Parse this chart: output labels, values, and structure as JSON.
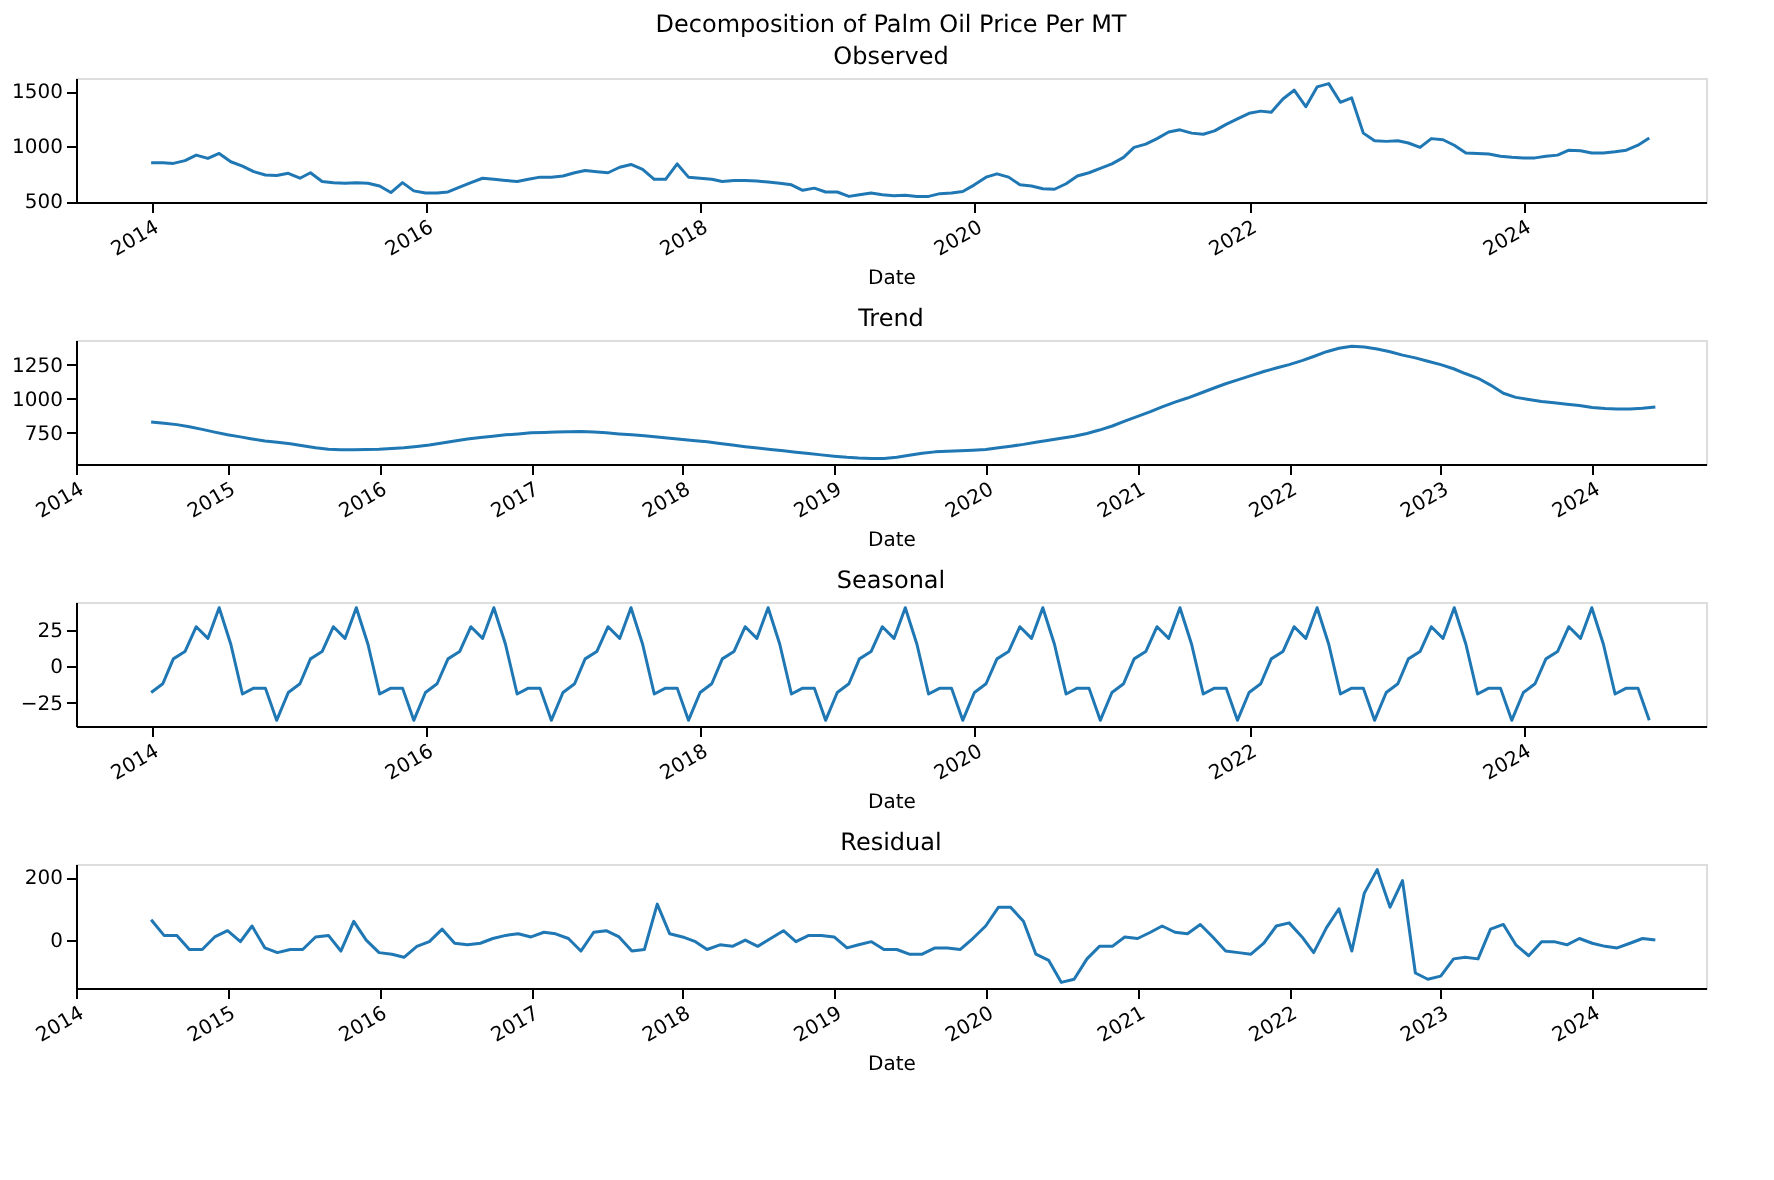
{
  "chart_data": [
    {
      "type": "line",
      "title": "Decomposition of Palm Oil Price Per MT",
      "subtitle": "Observed",
      "xlabel": "Date",
      "grid": false,
      "xlim": [
        "2013-06-15",
        "2025-05-01"
      ],
      "xticks": [
        "2014",
        "2016",
        "2018",
        "2020",
        "2022",
        "2024"
      ],
      "ylim": [
        494,
        1621
      ],
      "yticks": [
        500,
        1000,
        1500
      ],
      "x": [
        "2014-01",
        "2014-02",
        "2014-03",
        "2014-04",
        "2014-05",
        "2014-06",
        "2014-07",
        "2014-08",
        "2014-09",
        "2014-10",
        "2014-11",
        "2014-12",
        "2015-01",
        "2015-02",
        "2015-03",
        "2015-04",
        "2015-05",
        "2015-06",
        "2015-07",
        "2015-08",
        "2015-09",
        "2015-10",
        "2015-11",
        "2015-12",
        "2016-01",
        "2016-02",
        "2016-03",
        "2016-04",
        "2016-05",
        "2016-06",
        "2016-07",
        "2016-08",
        "2016-09",
        "2016-10",
        "2016-11",
        "2016-12",
        "2017-01",
        "2017-02",
        "2017-03",
        "2017-04",
        "2017-05",
        "2017-06",
        "2017-07",
        "2017-08",
        "2017-09",
        "2017-10",
        "2017-11",
        "2017-12",
        "2018-01",
        "2018-02",
        "2018-03",
        "2018-04",
        "2018-05",
        "2018-06",
        "2018-07",
        "2018-08",
        "2018-09",
        "2018-10",
        "2018-11",
        "2018-12",
        "2019-01",
        "2019-02",
        "2019-03",
        "2019-04",
        "2019-05",
        "2019-06",
        "2019-07",
        "2019-08",
        "2019-09",
        "2019-10",
        "2019-11",
        "2019-12",
        "2020-01",
        "2020-02",
        "2020-03",
        "2020-04",
        "2020-05",
        "2020-06",
        "2020-07",
        "2020-08",
        "2020-09",
        "2020-10",
        "2020-11",
        "2020-12",
        "2021-01",
        "2021-02",
        "2021-03",
        "2021-04",
        "2021-05",
        "2021-06",
        "2021-07",
        "2021-08",
        "2021-09",
        "2021-10",
        "2021-11",
        "2021-12",
        "2022-01",
        "2022-02",
        "2022-03",
        "2022-04",
        "2022-05",
        "2022-06",
        "2022-07",
        "2022-08",
        "2022-09",
        "2022-10",
        "2022-11",
        "2022-12",
        "2023-01",
        "2023-02",
        "2023-03",
        "2023-04",
        "2023-05",
        "2023-06",
        "2023-07",
        "2023-08",
        "2023-09",
        "2023-10",
        "2023-11",
        "2023-12",
        "2024-01",
        "2024-02",
        "2024-03",
        "2024-04",
        "2024-05",
        "2024-06",
        "2024-07",
        "2024-08",
        "2024-09",
        "2024-10",
        "2024-11",
        "2024-12"
      ],
      "series": [
        {
          "color": "#1f77b4",
          "values": [
            850,
            850,
            845,
            870,
            920,
            890,
            935,
            860,
            820,
            770,
            740,
            735,
            755,
            710,
            760,
            680,
            670,
            665,
            670,
            665,
            640,
            580,
            670,
            595,
            575,
            575,
            585,
            630,
            670,
            710,
            700,
            690,
            680,
            700,
            720,
            720,
            730,
            760,
            780,
            770,
            760,
            810,
            835,
            790,
            700,
            700,
            840,
            720,
            710,
            700,
            680,
            690,
            690,
            685,
            675,
            665,
            650,
            600,
            620,
            585,
            585,
            545,
            560,
            575,
            560,
            550,
            555,
            545,
            545,
            570,
            575,
            590,
            650,
            720,
            750,
            720,
            650,
            640,
            615,
            610,
            660,
            730,
            760,
            800,
            840,
            900,
            990,
            1020,
            1070,
            1130,
            1150,
            1120,
            1110,
            1140,
            1200,
            1250,
            1300,
            1320,
            1310,
            1430,
            1510,
            1360,
            1540,
            1570,
            1400,
            1440,
            1120,
            1050,
            1045,
            1050,
            1030,
            990,
            1070,
            1060,
            1010,
            940,
            935,
            930,
            910,
            900,
            895,
            895,
            910,
            920,
            965,
            960,
            940,
            940,
            950,
            965,
            1010,
            1075
          ]
        }
      ]
    },
    {
      "type": "line",
      "title": "Trend",
      "xlabel": "Date",
      "grid": false,
      "xlim": [
        "2014-01-01",
        "2024-10-01"
      ],
      "xticks": [
        "2014",
        "2015",
        "2016",
        "2017",
        "2018",
        "2019",
        "2020",
        "2021",
        "2022",
        "2023",
        "2024"
      ],
      "ylim": [
        521,
        1431
      ],
      "yticks": [
        750,
        1000,
        1250
      ],
      "x": [
        "2014-07",
        "2014-08",
        "2014-09",
        "2014-10",
        "2014-11",
        "2014-12",
        "2015-01",
        "2015-02",
        "2015-03",
        "2015-04",
        "2015-05",
        "2015-06",
        "2015-07",
        "2015-08",
        "2015-09",
        "2015-10",
        "2015-11",
        "2015-12",
        "2016-01",
        "2016-02",
        "2016-03",
        "2016-04",
        "2016-05",
        "2016-06",
        "2016-07",
        "2016-08",
        "2016-09",
        "2016-10",
        "2016-11",
        "2016-12",
        "2017-01",
        "2017-02",
        "2017-03",
        "2017-04",
        "2017-05",
        "2017-06",
        "2017-07",
        "2017-08",
        "2017-09",
        "2017-10",
        "2017-11",
        "2017-12",
        "2018-01",
        "2018-02",
        "2018-03",
        "2018-04",
        "2018-05",
        "2018-06",
        "2018-07",
        "2018-08",
        "2018-09",
        "2018-10",
        "2018-11",
        "2018-12",
        "2019-01",
        "2019-02",
        "2019-03",
        "2019-04",
        "2019-05",
        "2019-06",
        "2019-07",
        "2019-08",
        "2019-09",
        "2019-10",
        "2019-11",
        "2019-12",
        "2020-01",
        "2020-02",
        "2020-03",
        "2020-04",
        "2020-05",
        "2020-06",
        "2020-07",
        "2020-08",
        "2020-09",
        "2020-10",
        "2020-11",
        "2020-12",
        "2021-01",
        "2021-02",
        "2021-03",
        "2021-04",
        "2021-05",
        "2021-06",
        "2021-07",
        "2021-08",
        "2021-09",
        "2021-10",
        "2021-11",
        "2021-12",
        "2022-01",
        "2022-02",
        "2022-03",
        "2022-04",
        "2022-05",
        "2022-06",
        "2022-07",
        "2022-08",
        "2022-09",
        "2022-10",
        "2022-11",
        "2022-12",
        "2023-01",
        "2023-02",
        "2023-03",
        "2023-04",
        "2023-05",
        "2023-06",
        "2023-07",
        "2023-08",
        "2023-09",
        "2023-10",
        "2023-11",
        "2023-12",
        "2024-01",
        "2024-02",
        "2024-03",
        "2024-04",
        "2024-05",
        "2024-06"
      ],
      "series": [
        {
          "color": "#1f77b4",
          "values": [
            830,
            820,
            810,
            795,
            775,
            755,
            735,
            720,
            705,
            690,
            680,
            670,
            655,
            640,
            630,
            625,
            625,
            628,
            630,
            635,
            640,
            650,
            660,
            675,
            690,
            705,
            715,
            725,
            735,
            742,
            750,
            752,
            755,
            758,
            760,
            755,
            750,
            742,
            735,
            728,
            720,
            710,
            700,
            692,
            685,
            672,
            660,
            648,
            638,
            628,
            618,
            608,
            598,
            588,
            578,
            570,
            565,
            562,
            562,
            570,
            585,
            600,
            610,
            615,
            618,
            622,
            628,
            640,
            652,
            665,
            680,
            695,
            710,
            725,
            745,
            770,
            800,
            835,
            870,
            905,
            940,
            975,
            1005,
            1040,
            1075,
            1110,
            1140,
            1170,
            1200,
            1225,
            1250,
            1280,
            1310,
            1345,
            1370,
            1385,
            1380,
            1365,
            1345,
            1320,
            1300,
            1275,
            1250,
            1220,
            1185,
            1150,
            1100,
            1040,
            1010,
            995,
            980,
            970,
            960,
            950,
            935,
            928,
            925,
            925,
            930,
            940
          ]
        }
      ]
    },
    {
      "type": "line",
      "title": "Seasonal",
      "xlabel": "Date",
      "grid": false,
      "xlim": [
        "2013-06-15",
        "2025-05-01"
      ],
      "xticks": [
        "2014",
        "2016",
        "2018",
        "2020",
        "2022",
        "2024"
      ],
      "ylim": [
        -40.9,
        43.9
      ],
      "yticks": [
        -25,
        0,
        25
      ],
      "x": [
        "2014-01",
        "2014-02",
        "2014-03",
        "2014-04",
        "2014-05",
        "2014-06",
        "2014-07",
        "2014-08",
        "2014-09",
        "2014-10",
        "2014-11",
        "2014-12",
        "2015-01",
        "2015-02",
        "2015-03",
        "2015-04",
        "2015-05",
        "2015-06",
        "2015-07",
        "2015-08",
        "2015-09",
        "2015-10",
        "2015-11",
        "2015-12",
        "2016-01",
        "2016-02",
        "2016-03",
        "2016-04",
        "2016-05",
        "2016-06",
        "2016-07",
        "2016-08",
        "2016-09",
        "2016-10",
        "2016-11",
        "2016-12",
        "2017-01",
        "2017-02",
        "2017-03",
        "2017-04",
        "2017-05",
        "2017-06",
        "2017-07",
        "2017-08",
        "2017-09",
        "2017-10",
        "2017-11",
        "2017-12",
        "2018-01",
        "2018-02",
        "2018-03",
        "2018-04",
        "2018-05",
        "2018-06",
        "2018-07",
        "2018-08",
        "2018-09",
        "2018-10",
        "2018-11",
        "2018-12",
        "2019-01",
        "2019-02",
        "2019-03",
        "2019-04",
        "2019-05",
        "2019-06",
        "2019-07",
        "2019-08",
        "2019-09",
        "2019-10",
        "2019-11",
        "2019-12",
        "2020-01",
        "2020-02",
        "2020-03",
        "2020-04",
        "2020-05",
        "2020-06",
        "2020-07",
        "2020-08",
        "2020-09",
        "2020-10",
        "2020-11",
        "2020-12",
        "2021-01",
        "2021-02",
        "2021-03",
        "2021-04",
        "2021-05",
        "2021-06",
        "2021-07",
        "2021-08",
        "2021-09",
        "2021-10",
        "2021-11",
        "2021-12",
        "2022-01",
        "2022-02",
        "2022-03",
        "2022-04",
        "2022-05",
        "2022-06",
        "2022-07",
        "2022-08",
        "2022-09",
        "2022-10",
        "2022-11",
        "2022-12",
        "2023-01",
        "2023-02",
        "2023-03",
        "2023-04",
        "2023-05",
        "2023-06",
        "2023-07",
        "2023-08",
        "2023-09",
        "2023-10",
        "2023-11",
        "2023-12",
        "2024-01",
        "2024-02",
        "2024-03",
        "2024-04",
        "2024-05",
        "2024-06",
        "2024-07",
        "2024-08",
        "2024-09",
        "2024-10",
        "2024-11",
        "2024-12"
      ],
      "series": [
        {
          "color": "#1f77b4",
          "values": [
            -18,
            -12,
            5,
            10,
            27,
            19,
            40,
            15,
            -19,
            -15,
            -15,
            -37,
            -18,
            -12,
            5,
            10,
            27,
            19,
            40,
            15,
            -19,
            -15,
            -15,
            -37,
            -18,
            -12,
            5,
            10,
            27,
            19,
            40,
            15,
            -19,
            -15,
            -15,
            -37,
            -18,
            -12,
            5,
            10,
            27,
            19,
            40,
            15,
            -19,
            -15,
            -15,
            -37,
            -18,
            -12,
            5,
            10,
            27,
            19,
            40,
            15,
            -19,
            -15,
            -15,
            -37,
            -18,
            -12,
            5,
            10,
            27,
            19,
            40,
            15,
            -19,
            -15,
            -15,
            -37,
            -18,
            -12,
            5,
            10,
            27,
            19,
            40,
            15,
            -19,
            -15,
            -15,
            -37,
            -18,
            -12,
            5,
            10,
            27,
            19,
            40,
            15,
            -19,
            -15,
            -15,
            -37,
            -18,
            -12,
            5,
            10,
            27,
            19,
            40,
            15,
            -19,
            -15,
            -15,
            -37,
            -18,
            -12,
            5,
            10,
            27,
            19,
            40,
            15,
            -19,
            -15,
            -15,
            -37,
            -18,
            -12,
            5,
            10,
            27,
            19,
            40,
            15,
            -19,
            -15,
            -15,
            -37
          ]
        }
      ]
    },
    {
      "type": "line",
      "title": "Residual",
      "xlabel": "Date",
      "grid": false,
      "xlim": [
        "2014-01-01",
        "2024-10-01"
      ],
      "xticks": [
        "2014",
        "2015",
        "2016",
        "2017",
        "2018",
        "2019",
        "2020",
        "2021",
        "2022",
        "2023",
        "2024"
      ],
      "ylim": [
        -153,
        243
      ],
      "yticks": [
        0,
        200
      ],
      "x": [
        "2014-07",
        "2014-08",
        "2014-09",
        "2014-10",
        "2014-11",
        "2014-12",
        "2015-01",
        "2015-02",
        "2015-03",
        "2015-04",
        "2015-05",
        "2015-06",
        "2015-07",
        "2015-08",
        "2015-09",
        "2015-10",
        "2015-11",
        "2015-12",
        "2016-01",
        "2016-02",
        "2016-03",
        "2016-04",
        "2016-05",
        "2016-06",
        "2016-07",
        "2016-08",
        "2016-09",
        "2016-10",
        "2016-11",
        "2016-12",
        "2017-01",
        "2017-02",
        "2017-03",
        "2017-04",
        "2017-05",
        "2017-06",
        "2017-07",
        "2017-08",
        "2017-09",
        "2017-10",
        "2017-11",
        "2017-12",
        "2018-01",
        "2018-02",
        "2018-03",
        "2018-04",
        "2018-05",
        "2018-06",
        "2018-07",
        "2018-08",
        "2018-09",
        "2018-10",
        "2018-11",
        "2018-12",
        "2019-01",
        "2019-02",
        "2019-03",
        "2019-04",
        "2019-05",
        "2019-06",
        "2019-07",
        "2019-08",
        "2019-09",
        "2019-10",
        "2019-11",
        "2019-12",
        "2020-01",
        "2020-02",
        "2020-03",
        "2020-04",
        "2020-05",
        "2020-06",
        "2020-07",
        "2020-08",
        "2020-09",
        "2020-10",
        "2020-11",
        "2020-12",
        "2021-01",
        "2021-02",
        "2021-03",
        "2021-04",
        "2021-05",
        "2021-06",
        "2021-07",
        "2021-08",
        "2021-09",
        "2021-10",
        "2021-11",
        "2021-12",
        "2022-01",
        "2022-02",
        "2022-03",
        "2022-04",
        "2022-05",
        "2022-06",
        "2022-07",
        "2022-08",
        "2022-09",
        "2022-10",
        "2022-11",
        "2022-12",
        "2023-01",
        "2023-02",
        "2023-03",
        "2023-04",
        "2023-05",
        "2023-06",
        "2023-07",
        "2023-08",
        "2023-09",
        "2023-10",
        "2023-11",
        "2023-12",
        "2024-01",
        "2024-02",
        "2024-03",
        "2024-04",
        "2024-05",
        "2024-06"
      ],
      "series": [
        {
          "color": "#1f77b4",
          "values": [
            65,
            15,
            15,
            -30,
            -30,
            10,
            30,
            -5,
            45,
            -25,
            -40,
            -30,
            -30,
            10,
            15,
            -35,
            60,
            0,
            -40,
            -45,
            -55,
            -20,
            -5,
            35,
            -10,
            -15,
            -10,
            5,
            15,
            20,
            10,
            25,
            20,
            5,
            -35,
            25,
            30,
            10,
            -35,
            -30,
            115,
            20,
            10,
            -5,
            -30,
            -15,
            -20,
            0,
            -20,
            5,
            30,
            -5,
            15,
            15,
            10,
            -25,
            -15,
            -5,
            -30,
            -30,
            -45,
            -45,
            -25,
            -25,
            -30,
            5,
            45,
            105,
            105,
            60,
            -45,
            -65,
            -135,
            -125,
            -60,
            -20,
            -20,
            10,
            5,
            25,
            45,
            25,
            20,
            50,
            10,
            -35,
            -40,
            -45,
            -10,
            45,
            55,
            10,
            -40,
            40,
            100,
            -35,
            150,
            225,
            105,
            190,
            -105,
            -125,
            -115,
            -60,
            -55,
            -60,
            35,
            50,
            -15,
            -50,
            -5,
            -5,
            -15,
            5,
            -10,
            -20,
            -25,
            -10,
            5,
            0
          ]
        }
      ]
    }
  ]
}
